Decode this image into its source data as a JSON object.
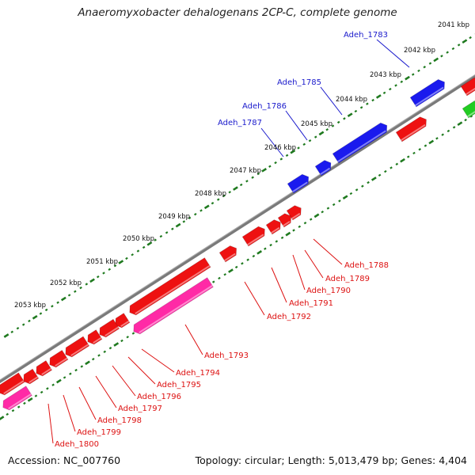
{
  "title": "Anaeromyxobacter dehalogenans 2CP-C, complete genome",
  "footer": {
    "accession": "Accession: NC_007760",
    "stats": "Topology: circular; Length: 5,013,479 bp; Genes: 4,404"
  },
  "colors": {
    "blue": "#1a1aee",
    "red": "#ee1111",
    "pink": "#ff2aa6",
    "green": "#22cc22",
    "backbone": "#7a7a7a",
    "tick": "#1f7a1f",
    "label_blue": "#1a1acc",
    "label_red": "#dd1111"
  },
  "kbp_labels": [
    "2041 kbp",
    "2042 kbp",
    "2043 kbp",
    "2044 kbp",
    "2045 kbp",
    "2046 kbp",
    "2047 kbp",
    "2048 kbp",
    "2049 kbp",
    "2050 kbp",
    "2051 kbp",
    "2052 kbp",
    "2053 kbp"
  ],
  "gene_labels": {
    "outer": [
      "Adeh_1783",
      "Adeh_1785",
      "Adeh_1786",
      "Adeh_1787"
    ],
    "inner": [
      "Adeh_1788",
      "Adeh_1789",
      "Adeh_1790",
      "Adeh_1791",
      "Adeh_1792",
      "Adeh_1793",
      "Adeh_1794",
      "Adeh_1795",
      "Adeh_1796",
      "Adeh_1797",
      "Adeh_1798",
      "Adeh_1799",
      "Adeh_1800"
    ]
  }
}
